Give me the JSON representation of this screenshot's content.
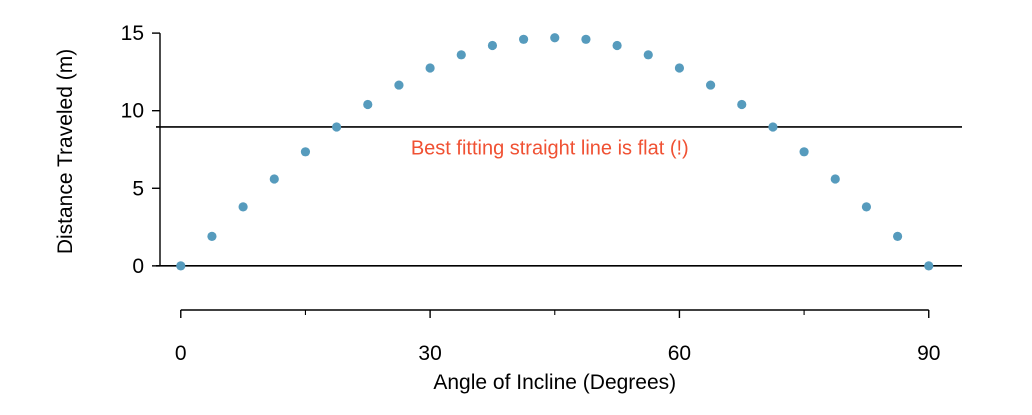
{
  "chart_data": {
    "type": "scatter",
    "xlabel": "Angle of Incline (Degrees)",
    "ylabel": "Distance Traveled (m)",
    "xlim": [
      -2.5,
      94
    ],
    "ylim": [
      -2.2,
      15.2
    ],
    "x_ticks": [
      0,
      30,
      60,
      90
    ],
    "x_tick_labels": [
      "0",
      "30",
      "60",
      "90"
    ],
    "x_minor_ticks": [
      15,
      45,
      75
    ],
    "y_ticks": [
      0,
      5,
      10,
      15
    ],
    "y_tick_labels": [
      "0",
      "5",
      "10",
      "15"
    ],
    "grid": false,
    "series": [
      {
        "x": [
          0,
          3.75,
          7.5,
          11.25,
          15,
          18.75,
          22.5,
          26.25,
          30,
          33.75,
          37.5,
          41.25,
          45,
          48.75,
          52.5,
          56.25,
          60,
          63.75,
          67.5,
          71.25,
          75,
          78.75,
          82.5,
          86.25,
          90
        ],
        "y": [
          0,
          1.9,
          3.8,
          5.6,
          7.35,
          8.95,
          10.4,
          11.65,
          12.75,
          13.6,
          14.2,
          14.6,
          14.7,
          14.6,
          14.2,
          13.6,
          12.75,
          11.65,
          10.4,
          8.95,
          7.35,
          5.6,
          3.8,
          1.9,
          0
        ],
        "color": "#569bbd"
      }
    ],
    "reference_lines": [
      {
        "type": "horizontal",
        "y": 8.95,
        "color": "#000000"
      },
      {
        "type": "horizontal",
        "y": 0,
        "color": "#000000"
      }
    ],
    "annotations": [
      {
        "text": "Best fitting straight line is flat (!)",
        "x": 45,
        "y": 7.5,
        "color": "#f05133"
      }
    ]
  }
}
